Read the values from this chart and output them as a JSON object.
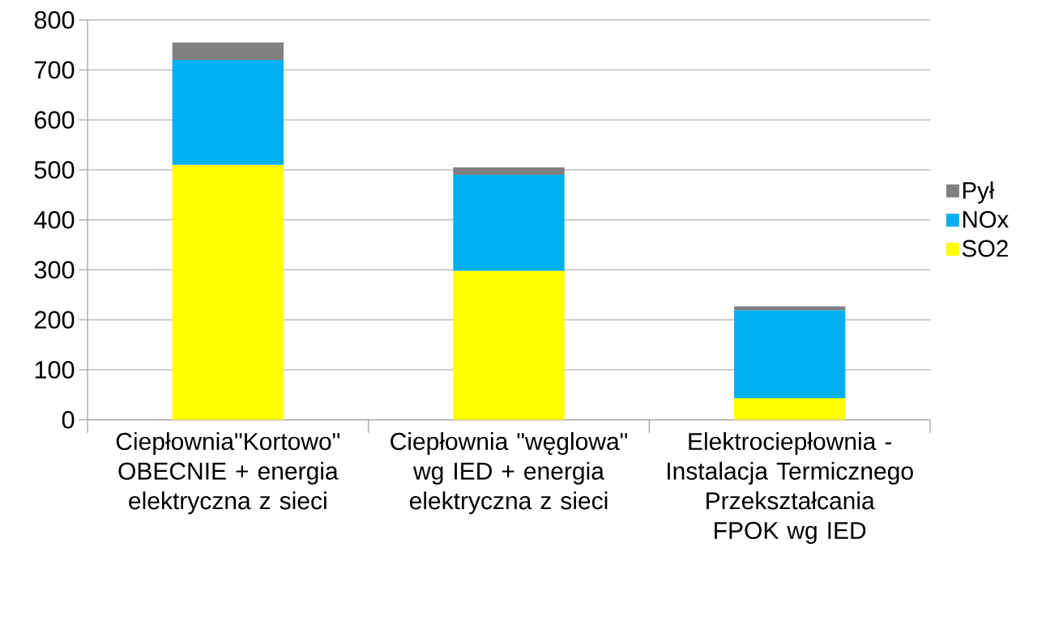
{
  "chart_data": {
    "type": "bar",
    "stacked": true,
    "categories": [
      "Ciepłownia\"Kortowo\" OBECNIE + energia elektryczna z sieci",
      "Ciepłownia \"węglowa\" wg IED + energia elektryczna z sieci",
      "Elektrociepłownia - Instalacja Termicznego Przekształcania FPOK wg IED"
    ],
    "series": [
      {
        "name": "SO2",
        "color": "#ffff00",
        "values": [
          510,
          298,
          43
        ]
      },
      {
        "name": "NOx",
        "color": "#00b0f0",
        "values": [
          210,
          192,
          176
        ]
      },
      {
        "name": "Pył",
        "color": "#808080",
        "values": [
          35,
          15,
          8
        ]
      }
    ],
    "ylim": [
      0,
      800
    ],
    "yticks": [
      0,
      100,
      200,
      300,
      400,
      500,
      600,
      700,
      800
    ],
    "grid": "y",
    "legend": "right"
  }
}
